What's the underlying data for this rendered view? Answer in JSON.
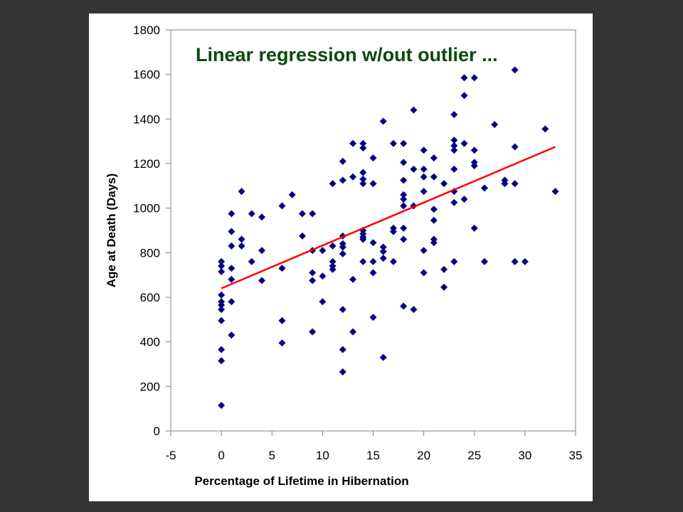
{
  "chart_data": {
    "type": "scatter",
    "title": "Linear regression w/out outlier ...",
    "xlabel": "Percentage of Lifetime in Hibernation",
    "ylabel": "Age at Death (Days)",
    "xlim": [
      -5,
      35
    ],
    "ylim": [
      0,
      1800
    ],
    "xticks": [
      "-5",
      "0",
      "5",
      "10",
      "15",
      "20",
      "25",
      "30",
      "35"
    ],
    "yticks": [
      "0",
      "200",
      "400",
      "600",
      "800",
      "1000",
      "1200",
      "1400",
      "1600",
      "1800"
    ],
    "grid": false,
    "colors": {
      "points": "#000080",
      "trendline": "#ff0000",
      "title": "#0b4a0b"
    },
    "trendline": {
      "x": [
        0,
        33
      ],
      "y": [
        640,
        1275
      ]
    },
    "points": [
      [
        0,
        760
      ],
      [
        0,
        740
      ],
      [
        0,
        715
      ],
      [
        0,
        610
      ],
      [
        0,
        580
      ],
      [
        0,
        565
      ],
      [
        0,
        545
      ],
      [
        0,
        495
      ],
      [
        0,
        365
      ],
      [
        0,
        315
      ],
      [
        0,
        115
      ],
      [
        1,
        975
      ],
      [
        1,
        895
      ],
      [
        1,
        830
      ],
      [
        1,
        730
      ],
      [
        1,
        680
      ],
      [
        1,
        580
      ],
      [
        1,
        430
      ],
      [
        2,
        1075
      ],
      [
        2,
        860
      ],
      [
        2,
        830
      ],
      [
        3,
        975
      ],
      [
        3,
        760
      ],
      [
        4,
        960
      ],
      [
        4,
        810
      ],
      [
        4,
        675
      ],
      [
        6,
        1010
      ],
      [
        6,
        730
      ],
      [
        6,
        495
      ],
      [
        6,
        395
      ],
      [
        7,
        1060
      ],
      [
        8,
        975
      ],
      [
        8,
        875
      ],
      [
        9,
        975
      ],
      [
        9,
        810
      ],
      [
        9,
        710
      ],
      [
        9,
        675
      ],
      [
        9,
        445
      ],
      [
        10,
        810
      ],
      [
        10,
        695
      ],
      [
        10,
        580
      ],
      [
        11,
        1110
      ],
      [
        11,
        830
      ],
      [
        11,
        760
      ],
      [
        11,
        740
      ],
      [
        11,
        725
      ],
      [
        12,
        1210
      ],
      [
        12,
        1125
      ],
      [
        12,
        875
      ],
      [
        12,
        840
      ],
      [
        12,
        825
      ],
      [
        12,
        795
      ],
      [
        12,
        545
      ],
      [
        12,
        365
      ],
      [
        12,
        265
      ],
      [
        13,
        1290
      ],
      [
        13,
        1140
      ],
      [
        13,
        680
      ],
      [
        13,
        445
      ],
      [
        14,
        1290
      ],
      [
        14,
        1270
      ],
      [
        14,
        1160
      ],
      [
        14,
        1130
      ],
      [
        14,
        1110
      ],
      [
        14,
        900
      ],
      [
        14,
        885
      ],
      [
        14,
        870
      ],
      [
        14,
        860
      ],
      [
        14,
        760
      ],
      [
        15,
        1225
      ],
      [
        15,
        1110
      ],
      [
        15,
        845
      ],
      [
        15,
        760
      ],
      [
        15,
        710
      ],
      [
        15,
        510
      ],
      [
        16,
        1390
      ],
      [
        16,
        825
      ],
      [
        16,
        805
      ],
      [
        16,
        775
      ],
      [
        16,
        330
      ],
      [
        17,
        1290
      ],
      [
        17,
        910
      ],
      [
        17,
        895
      ],
      [
        17,
        760
      ],
      [
        18,
        1290
      ],
      [
        18,
        1205
      ],
      [
        18,
        1125
      ],
      [
        18,
        1060
      ],
      [
        18,
        1040
      ],
      [
        18,
        1010
      ],
      [
        18,
        910
      ],
      [
        18,
        860
      ],
      [
        18,
        560
      ],
      [
        19,
        1440
      ],
      [
        19,
        1175
      ],
      [
        19,
        1010
      ],
      [
        19,
        545
      ],
      [
        20,
        1260
      ],
      [
        20,
        1175
      ],
      [
        20,
        1140
      ],
      [
        20,
        1075
      ],
      [
        20,
        810
      ],
      [
        20,
        710
      ],
      [
        21,
        1225
      ],
      [
        21,
        1140
      ],
      [
        21,
        995
      ],
      [
        21,
        945
      ],
      [
        21,
        860
      ],
      [
        21,
        845
      ],
      [
        22,
        1110
      ],
      [
        22,
        725
      ],
      [
        22,
        645
      ],
      [
        23,
        1420
      ],
      [
        23,
        1305
      ],
      [
        23,
        1280
      ],
      [
        23,
        1260
      ],
      [
        23,
        1175
      ],
      [
        23,
        1075
      ],
      [
        23,
        1025
      ],
      [
        23,
        760
      ],
      [
        24,
        1585
      ],
      [
        24,
        1505
      ],
      [
        24,
        1290
      ],
      [
        24,
        1040
      ],
      [
        25,
        1585
      ],
      [
        25,
        1260
      ],
      [
        25,
        1205
      ],
      [
        25,
        1190
      ],
      [
        25,
        910
      ],
      [
        26,
        1090
      ],
      [
        26,
        760
      ],
      [
        27,
        1375
      ],
      [
        28,
        1125
      ],
      [
        28,
        1110
      ],
      [
        29,
        1620
      ],
      [
        29,
        1275
      ],
      [
        29,
        1110
      ],
      [
        29,
        760
      ],
      [
        30,
        760
      ],
      [
        32,
        1355
      ],
      [
        33,
        1075
      ]
    ]
  }
}
